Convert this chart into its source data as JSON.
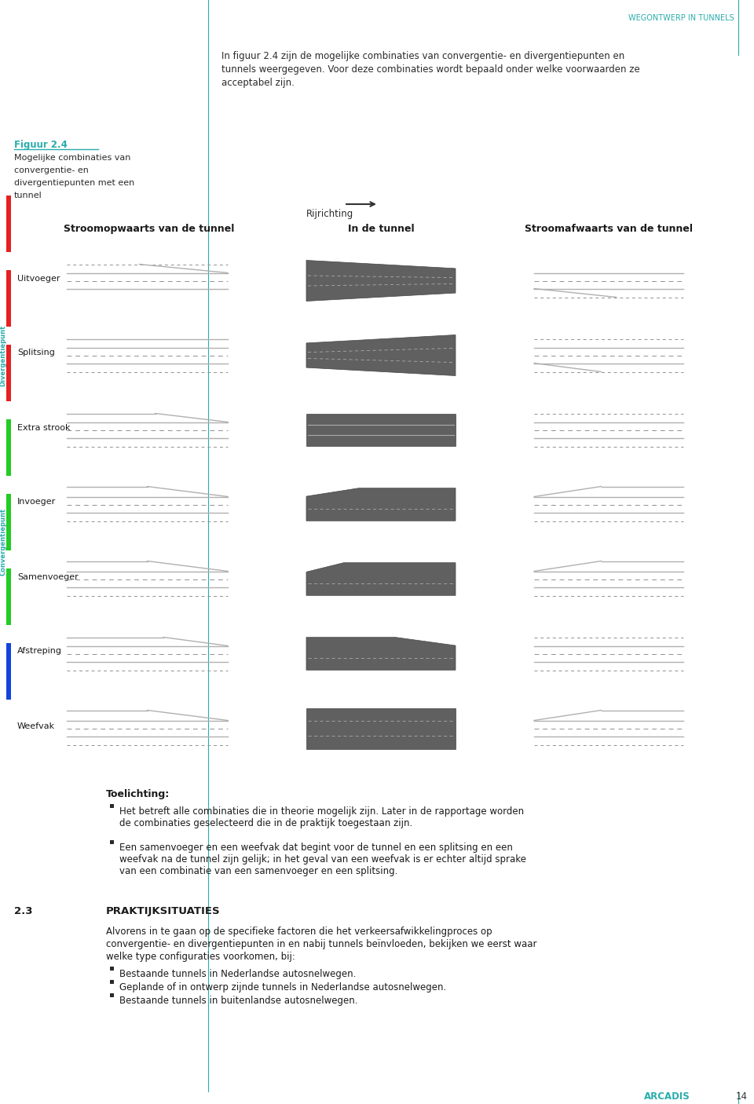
{
  "bg_color": "#ffffff",
  "teal_color": "#2aacac",
  "header_text": "WEGONTWERP IN TUNNELS",
  "figuur_label": "Figuur 2.4",
  "figuur_label_color": "#2aacac",
  "figuur_desc": [
    "Mogelijke combinaties van",
    "convergentie- en",
    "divergentiepunten met een",
    "tunnel"
  ],
  "intro_lines": [
    "In figuur 2.4 zijn de mogelijke combinaties van convergentie- en divergentiepunten en",
    "tunnels weergegeven. Voor deze combinaties wordt bepaald onder welke voorwaarden ze",
    "acceptabel zijn."
  ],
  "rijrichting_label": "Rijrichting",
  "col_labels": [
    "Stroomopwaarts van de tunnel",
    "In de tunnel",
    "Stroomafwaarts van de tunnel"
  ],
  "row_labels": [
    "Uitvoeger",
    "Splitsing",
    "Extra strook",
    "Invoeger",
    "Samenvoeger",
    "Afstreping",
    "Weefvak"
  ],
  "row_colors": [
    "#e62020",
    "#e62020",
    "#e62020",
    "#22cc22",
    "#22cc22",
    "#22cc22",
    "#1144dd"
  ],
  "side_label_divergent": "Divergentiepunt",
  "side_label_convergent": "Convergentiepunt",
  "side_label_color": "#2aacac",
  "tunnel_color": "#606060",
  "toelichting_title": "Toelichting:",
  "toelichting_bullets": [
    [
      "Het betreft alle combinaties die in theorie mogelijk zijn. Later in de rapportage worden",
      "de combinaties geselecteerd die in de praktijk toegestaan zijn."
    ],
    [
      "Een samenvoeger en een weefvak dat begint voor de tunnel en een splitsing en een",
      "weefvak na de tunnel zijn gelijk; in het geval van een weefvak is er echter altijd sprake",
      "van een combinatie van een samenvoeger en een splitsing."
    ]
  ],
  "section_num": "2.3",
  "section_title": "PRAKTIJKSITUATIES",
  "section_text": [
    "Alvorens in te gaan op de specifieke factoren die het verkeersafwikkelingproces op",
    "convergentie- en divergentiepunten in en nabij tunnels beïnvloeden, bekijken we eerst waar",
    "welke type configuraties voorkomen, bij:"
  ],
  "section_bullets": [
    "Bestaande tunnels in Nederlandse autosnelwegen.",
    "Geplande of in ontwerp zijnde tunnels in Nederlandse autosnelwegen.",
    "Bestaande tunnels in buitenlandse autosnelwegen."
  ],
  "arcadis_text": "ARCADIS",
  "page_num": "14"
}
